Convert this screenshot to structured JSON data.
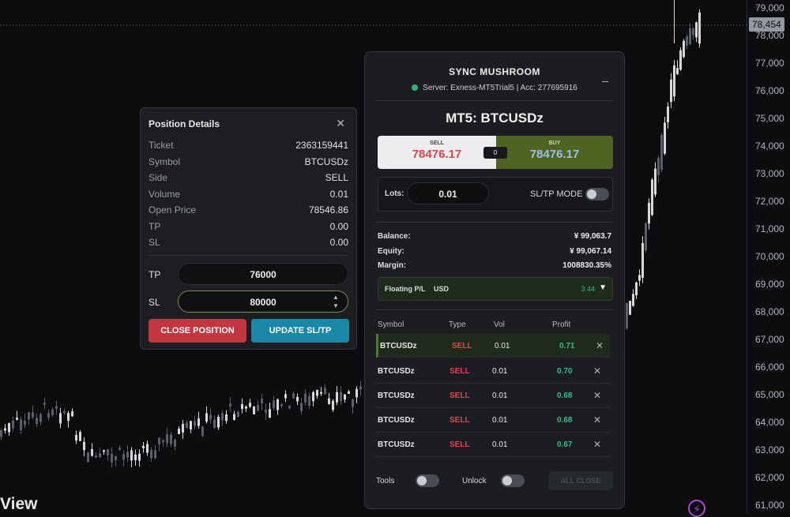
{
  "chart": {
    "brand": "View",
    "current_price": "78,454",
    "price_ticks": [
      "79,000",
      "78,000",
      "77,000",
      "76,000",
      "75,000",
      "74,000",
      "73,000",
      "72,000",
      "71,000",
      "70,000",
      "69,000",
      "68,000",
      "67,000",
      "66,000",
      "65,000",
      "64,000",
      "63,000",
      "62,000",
      "61,000"
    ],
    "candle_up_color": "#d7d8da",
    "candle_down_color": "#5c5f66"
  },
  "position_details": {
    "title": "Position Details",
    "rows": [
      {
        "label": "Ticket",
        "value": "2363159441"
      },
      {
        "label": "Symbol",
        "value": "BTCUSDz"
      },
      {
        "label": "Side",
        "value": "SELL"
      },
      {
        "label": "Volume",
        "value": "0.01"
      },
      {
        "label": "Open Price",
        "value": "78546.86"
      },
      {
        "label": "TP",
        "value": "0.00"
      },
      {
        "label": "SL",
        "value": "0.00"
      }
    ],
    "tp_label": "TP",
    "tp_value": "76000",
    "sl_label": "SL",
    "sl_value": "80000",
    "close_button": "CLOSE POSITION",
    "update_button": "UPDATE SL/TP"
  },
  "sync": {
    "title": "SYNC MUSHROOM",
    "minimize": "_",
    "server": "Server: Exness-MT5Trial5 | Acc: 277695916",
    "symbol_title": "MT5: BTCUSDz",
    "sell_label": "SELL",
    "sell_price": "78476.17",
    "buy_label": "BUY",
    "buy_price": "78476.17",
    "spread": "0",
    "lots_label": "Lots:",
    "lots_value": "0.01",
    "sltp_label": "SL/TP MODE",
    "balance_label": "Balance:",
    "balance_value": "¥ 99,063.7",
    "equity_label": "Equity:",
    "equity_value": "¥ 99,067.14",
    "margin_label": "Margin:",
    "margin_value": "1008830.35%",
    "floating_label": "Floating P/L",
    "floating_currency": "USD",
    "floating_value": "3.44",
    "headers": {
      "symbol": "Symbol",
      "type": "Type",
      "vol": "Vol",
      "profit": "Profit"
    },
    "positions": [
      {
        "symbol": "BTCUSDz",
        "type": "SELL",
        "vol": "0.01",
        "profit": "0.71"
      },
      {
        "symbol": "BTCUSDz",
        "type": "SELL",
        "vol": "0.01",
        "profit": "0.70"
      },
      {
        "symbol": "BTCUSDz",
        "type": "SELL",
        "vol": "0.01",
        "profit": "0.68"
      },
      {
        "symbol": "BTCUSDz",
        "type": "SELL",
        "vol": "0.01",
        "profit": "0.68"
      },
      {
        "symbol": "BTCUSDz",
        "type": "SELL",
        "vol": "0.01",
        "profit": "0.67"
      }
    ],
    "tools_label": "Tools",
    "unlock_label": "Unlock",
    "all_close": "ALL CLOSE"
  }
}
